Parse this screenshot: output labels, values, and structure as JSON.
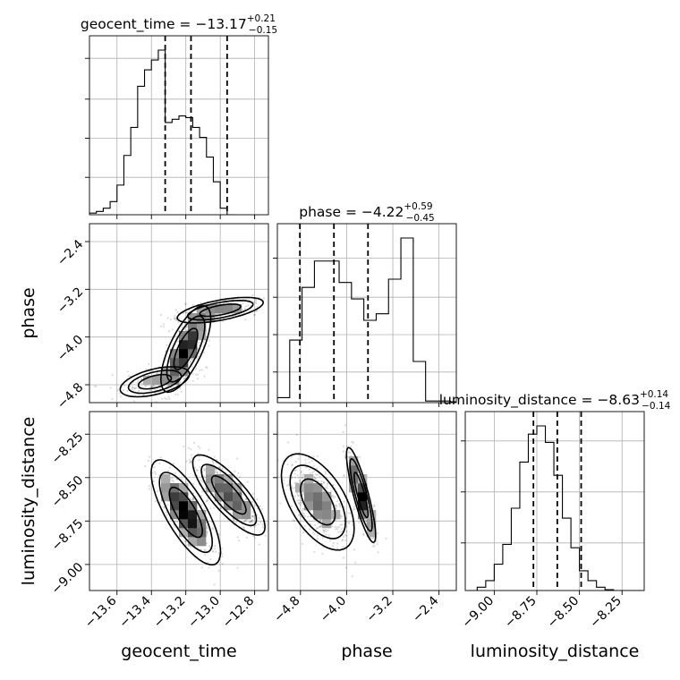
{
  "chart_data": [
    {
      "type": "histogram",
      "parameter": "geocent_time",
      "title": {
        "name": "geocent_time",
        "value": "−13.17",
        "plus": "+0.21",
        "minus": "−0.15"
      },
      "bin_edges_start": -13.76,
      "bin_width": 0.04,
      "counts": [
        0.01,
        0.02,
        0.04,
        0.08,
        0.18,
        0.36,
        0.53,
        0.78,
        0.88,
        0.94,
        1.0,
        0.56,
        0.58,
        0.6,
        0.59,
        0.53,
        0.47,
        0.35,
        0.2,
        0.04,
        0.0
      ],
      "quantiles": [
        -13.32,
        -13.17,
        -12.96
      ],
      "xlim": [
        -13.76,
        -12.72
      ],
      "grid": true
    },
    {
      "type": "histogram",
      "parameter": "phase",
      "title": {
        "name": "phase",
        "value": "−4.22",
        "plus": "+0.59",
        "minus": "−0.45"
      },
      "bin_edges_start": -5.2,
      "bin_width": 0.214,
      "counts": [
        0.03,
        0.38,
        0.7,
        0.86,
        0.86,
        0.73,
        0.63,
        0.5,
        0.54,
        0.75,
        1.0,
        0.25,
        0.01,
        0.01,
        0.005,
        0.0,
        0.0,
        0.0,
        0.0,
        0.0
      ],
      "quantiles": [
        -4.81,
        -4.22,
        -3.63
      ],
      "xlim": [
        -5.2,
        -2.1
      ],
      "grid": true
    },
    {
      "type": "histogram",
      "parameter": "luminosity_distance",
      "title": {
        "name": "luminosity_distance",
        "value": "−8.63",
        "plus": "+0.14",
        "minus": "−0.14"
      },
      "bin_edges_start": -9.15,
      "bin_width": 0.05,
      "counts": [
        0.0,
        0.02,
        0.06,
        0.16,
        0.28,
        0.5,
        0.78,
        0.95,
        1.0,
        0.9,
        0.7,
        0.44,
        0.26,
        0.12,
        0.06,
        0.02,
        0.005,
        0.0,
        0.0,
        0.0,
        0.0,
        0.0
      ],
      "quantiles": [
        -8.77,
        -8.63,
        -8.49
      ],
      "xlim": [
        -9.17,
        -8.12
      ],
      "grid": true
    },
    {
      "type": "heatmap",
      "x": "geocent_time",
      "y": "phase",
      "xlim": [
        -13.76,
        -12.72
      ],
      "ylim": [
        -5.1,
        -2.1
      ],
      "modes": [
        {
          "x": -13.2,
          "y": -4.2,
          "sx": 0.06,
          "sy": 0.3,
          "rho": 0.7,
          "weight": 0.55
        },
        {
          "x": -13.38,
          "y": -4.75,
          "sx": 0.12,
          "sy": 0.15,
          "rho": 0.5,
          "weight": 0.2
        },
        {
          "x": -13.0,
          "y": -3.55,
          "sx": 0.14,
          "sy": 0.12,
          "rho": 0.6,
          "weight": 0.25
        }
      ],
      "grid": true
    },
    {
      "type": "heatmap",
      "x": "geocent_time",
      "y": "luminosity_distance",
      "xlim": [
        -13.76,
        -12.72
      ],
      "ylim": [
        -9.15,
        -8.12
      ],
      "modes": [
        {
          "x": -13.2,
          "y": -8.7,
          "sx": 0.08,
          "sy": 0.12,
          "rho": -0.75,
          "weight": 0.6
        },
        {
          "x": -12.95,
          "y": -8.6,
          "sx": 0.1,
          "sy": 0.11,
          "rho": -0.8,
          "weight": 0.4
        }
      ],
      "grid": true
    },
    {
      "type": "heatmap",
      "x": "phase",
      "y": "luminosity_distance",
      "xlim": [
        -5.2,
        -2.1
      ],
      "ylim": [
        -9.15,
        -8.12
      ],
      "modes": [
        {
          "x": -4.5,
          "y": -8.64,
          "sx": 0.25,
          "sy": 0.11,
          "rho": -0.55,
          "weight": 0.6
        },
        {
          "x": -3.75,
          "y": -8.6,
          "sx": 0.12,
          "sy": 0.13,
          "rho": -0.85,
          "weight": 0.4
        }
      ],
      "grid": true
    }
  ],
  "axes": {
    "x_labels": [
      "geocent_time",
      "phase",
      "luminosity_distance"
    ],
    "y_labels": [
      "phase",
      "luminosity_distance"
    ],
    "geocent_time_ticks": [
      "−13.6",
      "−13.4",
      "−13.2",
      "−13.0",
      "−12.8"
    ],
    "geocent_time_tick_values": [
      -13.6,
      -13.4,
      -13.2,
      -13.0,
      -12.8
    ],
    "phase_ticks": [
      "−4.8",
      "−4.0",
      "−3.2",
      "−2.4"
    ],
    "phase_tick_values": [
      -4.8,
      -4.0,
      -3.2,
      -2.4
    ],
    "lumdist_ticks": [
      "−9.00",
      "−8.75",
      "−8.50",
      "−8.25"
    ],
    "lumdist_tick_values": [
      -9.0,
      -8.75,
      -8.5,
      -8.25
    ]
  }
}
